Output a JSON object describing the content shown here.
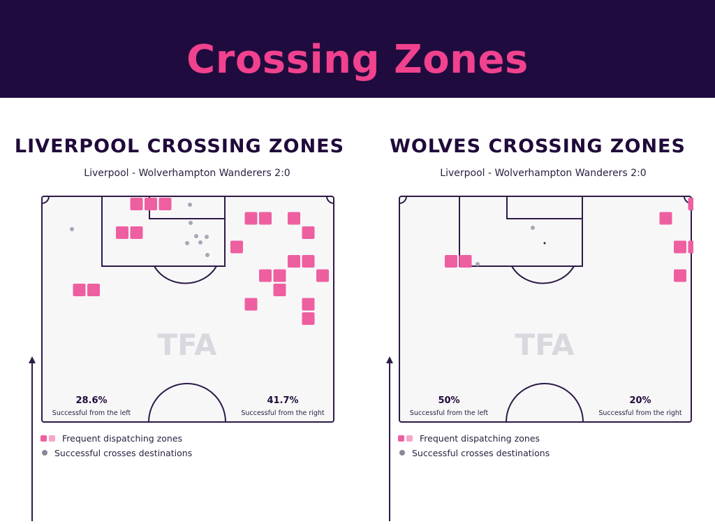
{
  "header": {
    "title": "Crossing Zones"
  },
  "colors": {
    "header_bg": "#200b3e",
    "title": "#f0428e",
    "zone": "#ee5fa0",
    "zone_light": "#f6a5c9",
    "destination": "#a9a6b5",
    "pitch_line": "#2e1a47",
    "pitch_fill": "#f7f7f8",
    "watermark": "#d9d8df"
  },
  "watermark": "TFA",
  "legend": {
    "zones_label": "Frequent dispatching zones",
    "destinations_label": "Successful crosses destinations"
  },
  "chart_data": [
    {
      "type": "scatter",
      "title": "LIVERPOOL CROSSING ZONES",
      "subtitle": "Liverpool - Wolverhampton Wanderers 2:0",
      "left_stat": {
        "value": "28.6%",
        "label": "Successful from the left"
      },
      "right_stat": {
        "value": "41.7%",
        "label": "Successful from the right"
      },
      "zones": [
        [
          5,
          0
        ],
        [
          6,
          0
        ],
        [
          7,
          0
        ],
        [
          4,
          2
        ],
        [
          5,
          2
        ],
        [
          13,
          1
        ],
        [
          14,
          1
        ],
        [
          16,
          1
        ],
        [
          17,
          2
        ],
        [
          12,
          3
        ],
        [
          16,
          4
        ],
        [
          17,
          4
        ],
        [
          14,
          5
        ],
        [
          15,
          5
        ],
        [
          18,
          5
        ],
        [
          1,
          6
        ],
        [
          2,
          6
        ],
        [
          15,
          6
        ],
        [
          13,
          7
        ],
        [
          17,
          7
        ],
        [
          17,
          8
        ]
      ],
      "destinations": [
        [
          103,
          328
        ],
        [
          272,
          293
        ],
        [
          273,
          319
        ],
        [
          281,
          338
        ],
        [
          296,
          339
        ],
        [
          287,
          347
        ],
        [
          297,
          365
        ],
        [
          268,
          348
        ]
      ]
    },
    {
      "type": "scatter",
      "title": "WOLVES CROSSING ZONES",
      "subtitle": "Liverpool - Wolverhampton Wanderers 2:0",
      "left_stat": {
        "value": "50%",
        "label": "Successful from the left"
      },
      "right_stat": {
        "value": "20%",
        "label": "Successful from the right"
      },
      "zones": [
        [
          19,
          0
        ],
        [
          17,
          1
        ],
        [
          18,
          3
        ],
        [
          19,
          3
        ],
        [
          2,
          4
        ],
        [
          3,
          4
        ],
        [
          18,
          5
        ]
      ],
      "destinations": [
        [
          763,
          326
        ],
        [
          684,
          378
        ]
      ]
    }
  ]
}
